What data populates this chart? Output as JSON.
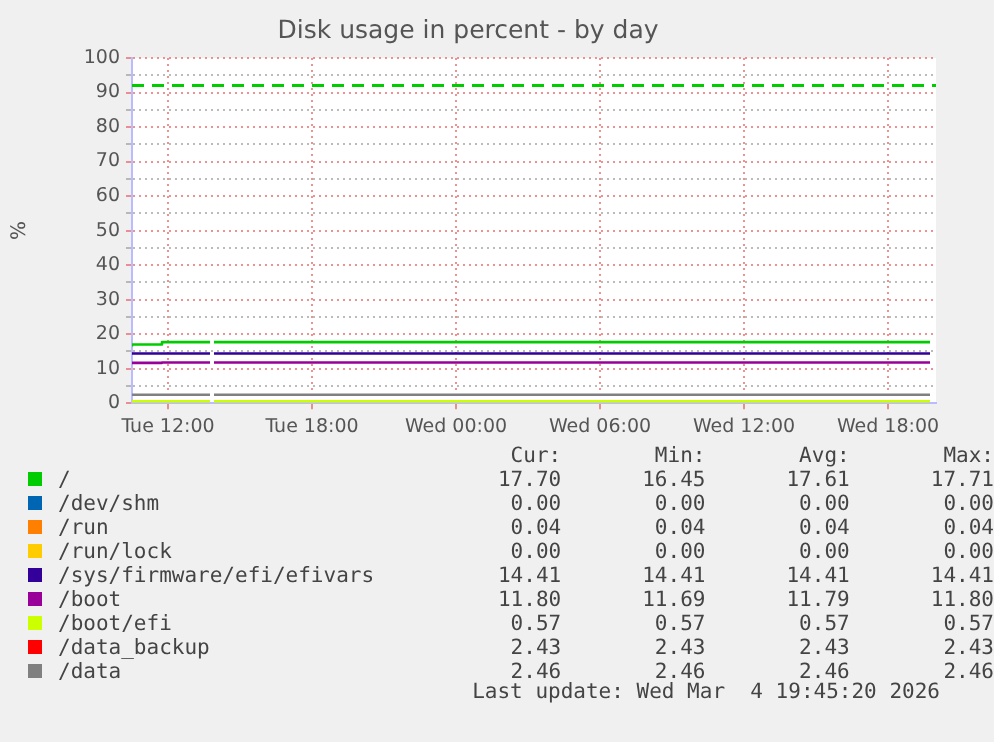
{
  "chart_data": {
    "type": "step",
    "title": "Disk usage in percent - by day",
    "ylabel": "%",
    "x": [
      "2026-03-03T10:30",
      "2026-03-03T11:45",
      "2026-03-03T12:30",
      "2026-03-03T13:45",
      "2026-03-03T13:50",
      "2026-03-03T13:55",
      "2026-03-04T19:45"
    ],
    "xlim": [
      "2026-03-03T10:30",
      "2026-03-04T20:00"
    ],
    "xticks": [
      {
        "value": "2026-03-03T12:00",
        "label": "Tue 12:00"
      },
      {
        "value": "2026-03-03T18:00",
        "label": "Tue 18:00"
      },
      {
        "value": "2026-03-04T00:00",
        "label": "Wed 00:00"
      },
      {
        "value": "2026-03-04T06:00",
        "label": "Wed 06:00"
      },
      {
        "value": "2026-03-04T12:00",
        "label": "Wed 12:00"
      },
      {
        "value": "2026-03-04T18:00",
        "label": "Wed 18:00"
      }
    ],
    "ylim": [
      0,
      100
    ],
    "yticks": [
      0,
      {
        "value": 5,
        "label": null
      },
      10,
      {
        "value": 15,
        "label": null
      },
      20,
      {
        "value": 25,
        "label": null
      },
      30,
      {
        "value": 35,
        "label": null
      },
      40,
      {
        "value": 45,
        "label": null
      },
      50,
      {
        "value": 55,
        "label": null
      },
      60,
      {
        "value": 65,
        "label": null
      },
      70,
      {
        "value": 75,
        "label": null
      },
      80,
      {
        "value": 85,
        "label": null
      },
      90,
      {
        "value": 95,
        "label": null
      },
      100
    ],
    "grid": true,
    "legend": "bottom",
    "marker": "none",
    "line_style": "solid",
    "series": [
      {
        "name": "/",
        "color": "#00cc00",
        "values": [
          16.45,
          17.0,
          17.7,
          17.7,
          null,
          17.7,
          17.7
        ]
      },
      {
        "name": "/dev/shm",
        "color": "#0066b3",
        "values": [
          null,
          null,
          null,
          null,
          null,
          null,
          null
        ]
      },
      {
        "name": "/run",
        "color": "#ff8000",
        "values": [
          null,
          null,
          null,
          null,
          null,
          null,
          null
        ]
      },
      {
        "name": "/run/lock",
        "color": "#ffcc00",
        "values": [
          null,
          null,
          null,
          null,
          null,
          null,
          null
        ]
      },
      {
        "name": "/sys/firmware/efi/efivars",
        "color": "#330099",
        "values": [
          14.41,
          14.41,
          14.41,
          14.41,
          null,
          14.41,
          14.41
        ]
      },
      {
        "name": "/boot",
        "color": "#990099",
        "values": [
          11.69,
          11.69,
          11.8,
          11.8,
          null,
          11.8,
          11.8
        ]
      },
      {
        "name": "/boot/efi",
        "color": "#ccff00",
        "values": [
          0.57,
          0.57,
          0.57,
          0.57,
          null,
          0.57,
          0.57
        ]
      },
      {
        "name": "/data_backup",
        "color": "#ff0000",
        "values": [
          null,
          null,
          null,
          null,
          null,
          null,
          null
        ]
      },
      {
        "name": "/data",
        "color": "#808080",
        "values": [
          2.46,
          2.46,
          2.46,
          2.46,
          null,
          2.46,
          2.46
        ]
      }
    ],
    "ref_lines": [
      {
        "axis": "y",
        "value": 92,
        "color": "#00cc00",
        "line_style": "dashed"
      }
    ],
    "annotations": [
      "Cur:",
      "Min:",
      "Avg:",
      "Max:",
      "17.70",
      "16.45",
      "17.61",
      "17.71",
      "0.00",
      "0.00",
      "0.00",
      "0.00",
      "0.04",
      "0.04",
      "0.04",
      "0.04",
      "0.00",
      "0.00",
      "0.00",
      "0.00",
      "14.41",
      "14.41",
      "14.41",
      "14.41",
      "11.80",
      "11.69",
      "11.79",
      "11.80",
      "0.57",
      "0.57",
      "0.57",
      "0.57",
      "2.43",
      "2.43",
      "2.43",
      "2.43",
      "2.46",
      "2.46",
      "2.46",
      "2.46",
      "Last update: Wed Mar  4 19:45:20 2026"
    ]
  }
}
